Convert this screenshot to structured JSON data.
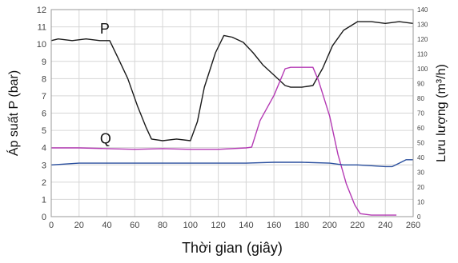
{
  "chart_data": {
    "type": "line",
    "xlabel": "Thời gian (giây)",
    "ylabel": "Áp suất P (bar)",
    "y2label": "Lưu lượng (m³/h)",
    "xlim": [
      0,
      260
    ],
    "ylim": [
      0,
      12
    ],
    "y2lim": [
      0,
      140
    ],
    "x_ticks": [
      0,
      20,
      40,
      60,
      80,
      100,
      120,
      140,
      160,
      180,
      200,
      220,
      240,
      260
    ],
    "y_ticks": [
      0,
      1,
      2,
      3,
      4,
      5,
      6,
      7,
      8,
      9,
      10,
      11,
      12
    ],
    "y2_ticks": [
      0,
      10,
      20,
      30,
      40,
      50,
      60,
      70,
      80,
      90,
      100,
      110,
      120,
      130,
      140
    ],
    "grid": true,
    "annotations": [
      {
        "text": "P",
        "x": 35,
        "y": 10.6
      },
      {
        "text": "Q",
        "x": 35,
        "y": 4.25
      }
    ],
    "series": [
      {
        "name": "P",
        "axis": "left",
        "color": "#1a1a1a",
        "x": [
          0,
          5,
          15,
          25,
          35,
          42,
          48,
          55,
          62,
          68,
          72,
          80,
          90,
          100,
          105,
          110,
          118,
          124,
          130,
          138,
          145,
          152,
          160,
          168,
          172,
          180,
          188,
          195,
          202,
          210,
          220,
          230,
          240,
          250,
          260
        ],
        "y": [
          10.2,
          10.3,
          10.2,
          10.3,
          10.2,
          10.2,
          9.2,
          8.0,
          6.4,
          5.2,
          4.5,
          4.4,
          4.5,
          4.4,
          5.5,
          7.5,
          9.5,
          10.5,
          10.4,
          10.1,
          9.5,
          8.8,
          8.2,
          7.6,
          7.5,
          7.5,
          7.6,
          8.6,
          9.9,
          10.8,
          11.3,
          11.3,
          11.2,
          11.3,
          11.2
        ]
      },
      {
        "name": "Q",
        "axis": "right",
        "color": "#b43ab4",
        "x": [
          0,
          20,
          40,
          60,
          80,
          100,
          120,
          140,
          144,
          150,
          160,
          168,
          172,
          180,
          188,
          192,
          200,
          206,
          212,
          218,
          222,
          230,
          240,
          248
        ],
        "y": [
          46.5,
          46.5,
          46,
          45.5,
          46,
          45.5,
          45.5,
          46.5,
          47,
          65,
          82,
          100,
          101,
          101,
          101,
          92,
          68,
          42,
          22,
          8,
          2,
          1,
          1,
          1
        ]
      },
      {
        "name": "",
        "axis": "left",
        "color": "#2a4f9e",
        "x": [
          0,
          20,
          40,
          60,
          80,
          100,
          120,
          140,
          160,
          180,
          200,
          210,
          220,
          230,
          240,
          245,
          250,
          255,
          260
        ],
        "y": [
          3.0,
          3.1,
          3.1,
          3.1,
          3.1,
          3.1,
          3.1,
          3.1,
          3.15,
          3.15,
          3.1,
          3.0,
          3.0,
          2.95,
          2.9,
          2.9,
          3.1,
          3.3,
          3.3
        ]
      }
    ]
  }
}
